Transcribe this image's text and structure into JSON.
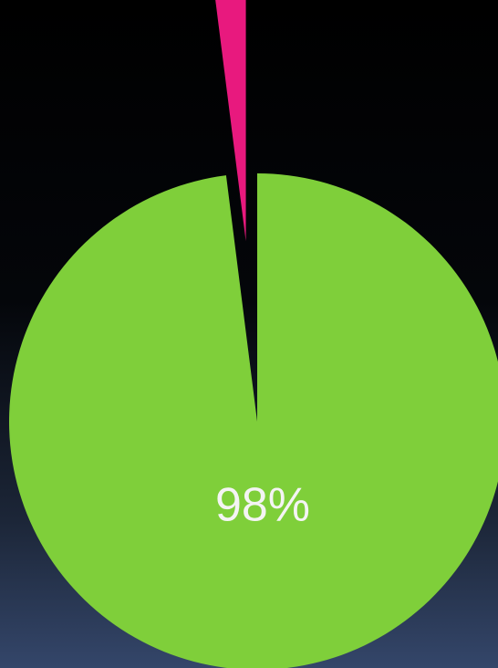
{
  "chart_data": {
    "type": "pie",
    "values": [
      98,
      2
    ],
    "value_labels": [
      "98%",
      null
    ],
    "colors": [
      "#7fcf3a",
      "#e8197e"
    ],
    "explode": [
      false,
      true
    ]
  }
}
